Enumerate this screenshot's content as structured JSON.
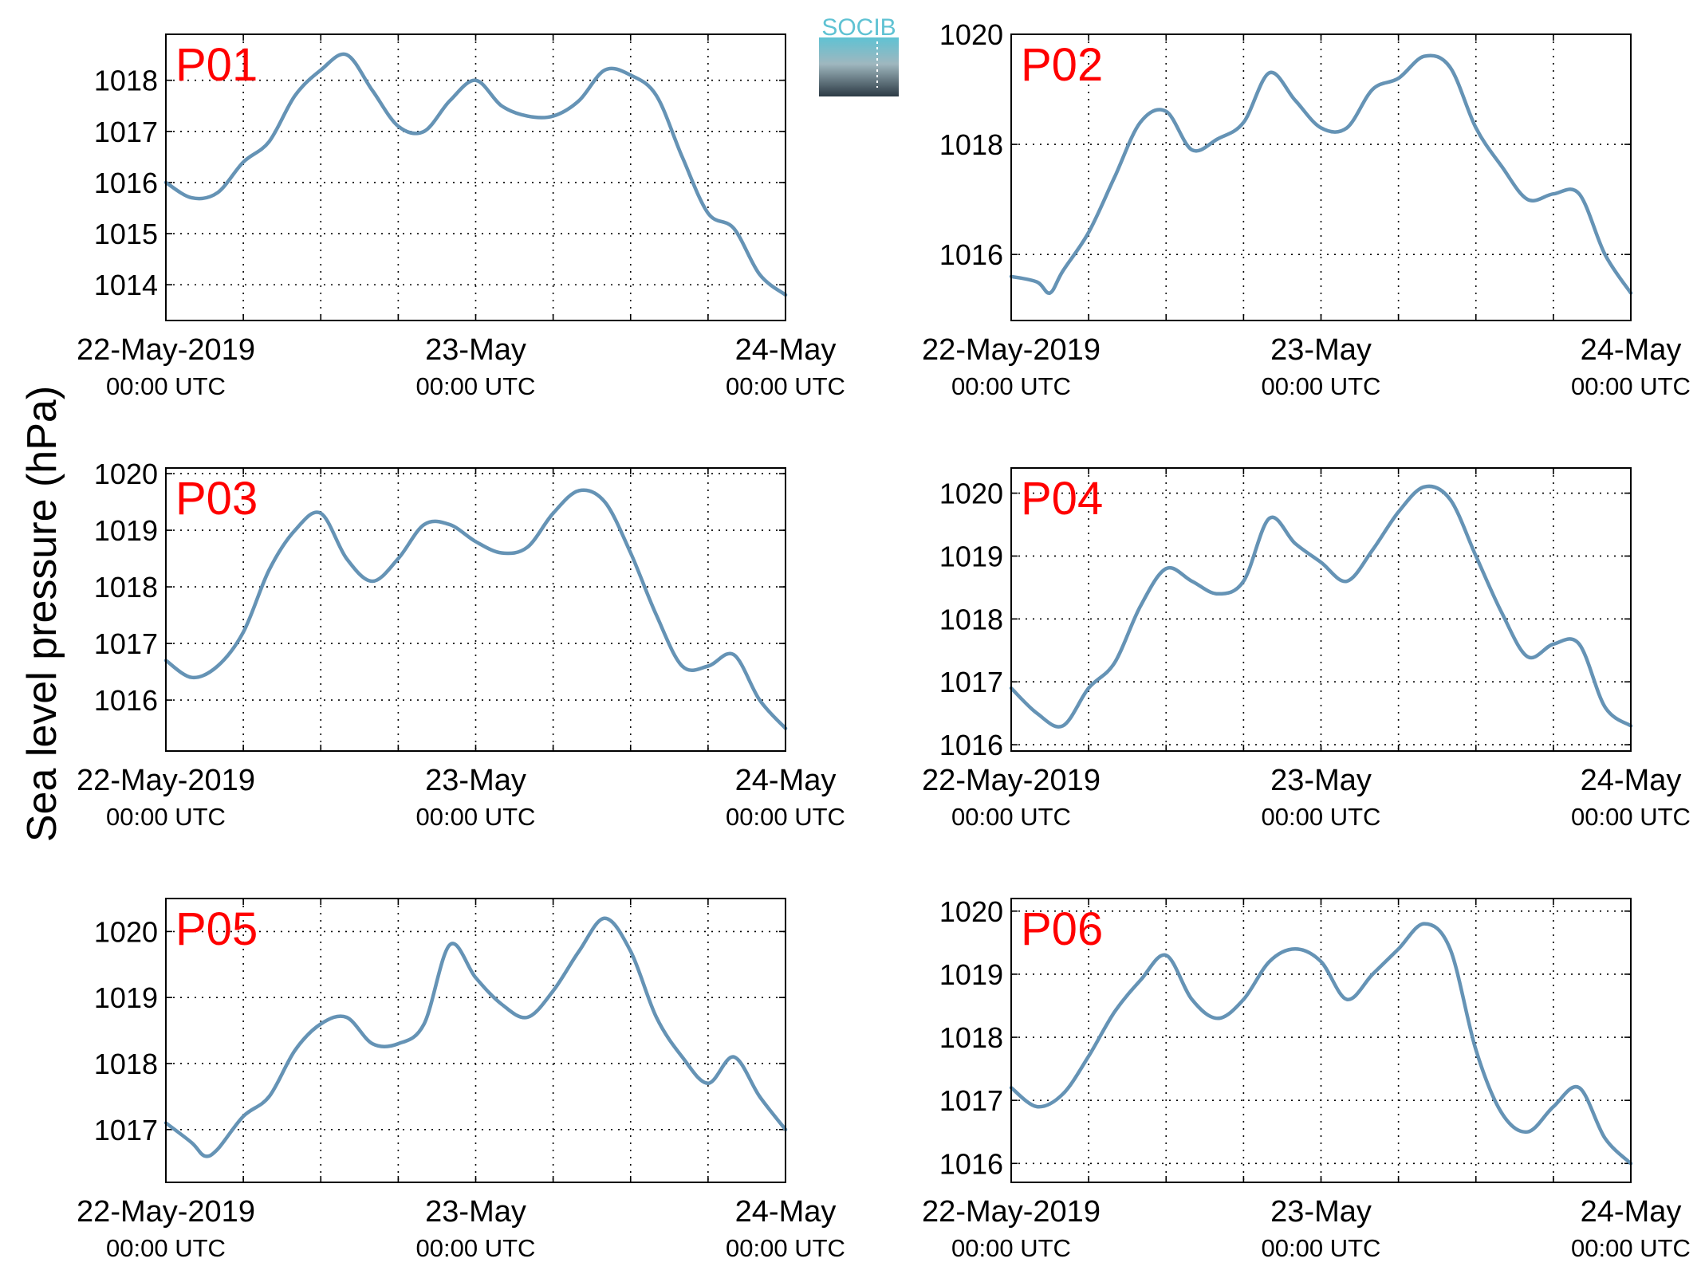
{
  "figure": {
    "ylabel": "Sea level pressure (hPa)",
    "logo": {
      "text": "SOCIB",
      "color_top": "#5fc2d3",
      "color_bottom": "#2c3a44"
    },
    "line_color": "#6593b5",
    "panel_label_color": "#ff0000",
    "grid": "dotted"
  },
  "chart_data": [
    {
      "type": "line",
      "name": "P01",
      "x_ticks": [
        [
          "22-May-2019",
          "00:00 UTC"
        ],
        [
          "23-May",
          "00:00 UTC"
        ],
        [
          "24-May",
          "00:00 UTC"
        ]
      ],
      "y_ticks": [
        1014,
        1015,
        1016,
        1017,
        1018
      ],
      "ylim": [
        1013.3,
        1018.9
      ],
      "x_hours": [
        0,
        2,
        4,
        6,
        8,
        10,
        12,
        14,
        16,
        18,
        20,
        22,
        24,
        26,
        28,
        30,
        32,
        34,
        36,
        38,
        40,
        42,
        44,
        46,
        48
      ],
      "values": [
        1016.0,
        1015.7,
        1015.8,
        1016.4,
        1016.8,
        1017.7,
        1018.2,
        1018.5,
        1017.8,
        1017.1,
        1017.0,
        1017.6,
        1018.0,
        1017.5,
        1017.3,
        1017.3,
        1017.6,
        1018.2,
        1018.1,
        1017.7,
        1016.5,
        1015.4,
        1015.1,
        1014.2,
        1013.8
      ]
    },
    {
      "type": "line",
      "name": "P02",
      "x_ticks": [
        [
          "22-May-2019",
          "00:00 UTC"
        ],
        [
          "23-May",
          "00:00 UTC"
        ],
        [
          "24-May",
          "00:00 UTC"
        ]
      ],
      "y_ticks": [
        1016,
        1018,
        1020
      ],
      "ylim": [
        1014.8,
        1020.0
      ],
      "x_hours": [
        0,
        2,
        3,
        4,
        6,
        8,
        10,
        12,
        14,
        16,
        18,
        20,
        22,
        24,
        26,
        28,
        30,
        32,
        34,
        36,
        38,
        40,
        42,
        44,
        46,
        48
      ],
      "values": [
        1015.6,
        1015.5,
        1015.3,
        1015.7,
        1016.4,
        1017.4,
        1018.4,
        1018.6,
        1017.9,
        1018.1,
        1018.4,
        1019.3,
        1018.8,
        1018.3,
        1018.3,
        1019.0,
        1019.2,
        1019.6,
        1019.4,
        1018.3,
        1017.6,
        1017.0,
        1017.1,
        1017.1,
        1016.0,
        1015.3
      ]
    },
    {
      "type": "line",
      "name": "P03",
      "x_ticks": [
        [
          "22-May-2019",
          "00:00 UTC"
        ],
        [
          "23-May",
          "00:00 UTC"
        ],
        [
          "24-May",
          "00:00 UTC"
        ]
      ],
      "y_ticks": [
        1016,
        1017,
        1018,
        1019,
        1020
      ],
      "ylim": [
        1015.1,
        1020.1
      ],
      "x_hours": [
        0,
        2,
        4,
        6,
        8,
        10,
        12,
        14,
        16,
        18,
        20,
        22,
        24,
        26,
        28,
        30,
        32,
        34,
        36,
        38,
        40,
        42,
        44,
        46,
        48
      ],
      "values": [
        1016.7,
        1016.4,
        1016.6,
        1017.2,
        1018.3,
        1019.0,
        1019.3,
        1018.5,
        1018.1,
        1018.5,
        1019.1,
        1019.1,
        1018.8,
        1018.6,
        1018.7,
        1019.3,
        1019.7,
        1019.5,
        1018.6,
        1017.5,
        1016.6,
        1016.6,
        1016.8,
        1016.0,
        1015.5
      ]
    },
    {
      "type": "line",
      "name": "P04",
      "x_ticks": [
        [
          "22-May-2019",
          "00:00 UTC"
        ],
        [
          "23-May",
          "00:00 UTC"
        ],
        [
          "24-May",
          "00:00 UTC"
        ]
      ],
      "y_ticks": [
        1016,
        1017,
        1018,
        1019,
        1020
      ],
      "ylim": [
        1015.9,
        1020.4
      ],
      "x_hours": [
        0,
        2,
        4,
        6,
        8,
        10,
        12,
        14,
        16,
        18,
        20,
        22,
        24,
        26,
        28,
        30,
        32,
        34,
        36,
        38,
        40,
        42,
        44,
        46,
        48
      ],
      "values": [
        1016.9,
        1016.5,
        1016.3,
        1016.9,
        1017.3,
        1018.2,
        1018.8,
        1018.6,
        1018.4,
        1018.6,
        1019.6,
        1019.2,
        1018.9,
        1018.6,
        1019.1,
        1019.7,
        1020.1,
        1019.9,
        1019.0,
        1018.1,
        1017.4,
        1017.6,
        1017.6,
        1016.6,
        1016.3
      ]
    },
    {
      "type": "line",
      "name": "P05",
      "x_ticks": [
        [
          "22-May-2019",
          "00:00 UTC"
        ],
        [
          "23-May",
          "00:00 UTC"
        ],
        [
          "24-May",
          "00:00 UTC"
        ]
      ],
      "y_ticks": [
        1017,
        1018,
        1019,
        1020
      ],
      "ylim": [
        1016.2,
        1020.5
      ],
      "x_hours": [
        0,
        2,
        3,
        4,
        6,
        8,
        10,
        12,
        14,
        16,
        18,
        20,
        22,
        24,
        26,
        28,
        30,
        32,
        34,
        36,
        38,
        40,
        42,
        44,
        46,
        48
      ],
      "values": [
        1017.1,
        1016.8,
        1016.6,
        1016.7,
        1017.2,
        1017.5,
        1018.2,
        1018.6,
        1018.7,
        1018.3,
        1018.3,
        1018.6,
        1019.8,
        1019.3,
        1018.9,
        1018.7,
        1019.1,
        1019.7,
        1020.2,
        1019.7,
        1018.7,
        1018.1,
        1017.7,
        1018.1,
        1017.5,
        1017.0
      ]
    },
    {
      "type": "line",
      "name": "P06",
      "x_ticks": [
        [
          "22-May-2019",
          "00:00 UTC"
        ],
        [
          "23-May",
          "00:00 UTC"
        ],
        [
          "24-May",
          "00:00 UTC"
        ]
      ],
      "y_ticks": [
        1016,
        1017,
        1018,
        1019,
        1020
      ],
      "ylim": [
        1015.7,
        1020.2
      ],
      "x_hours": [
        0,
        2,
        4,
        6,
        8,
        10,
        12,
        14,
        16,
        18,
        20,
        22,
        24,
        26,
        28,
        30,
        32,
        34,
        36,
        38,
        40,
        42,
        44,
        46,
        48
      ],
      "values": [
        1017.2,
        1016.9,
        1017.1,
        1017.7,
        1018.4,
        1018.9,
        1019.3,
        1018.6,
        1018.3,
        1018.6,
        1019.2,
        1019.4,
        1019.2,
        1018.6,
        1019.0,
        1019.4,
        1019.8,
        1019.4,
        1017.8,
        1016.8,
        1016.5,
        1016.9,
        1017.2,
        1016.4,
        1016.0
      ]
    }
  ]
}
